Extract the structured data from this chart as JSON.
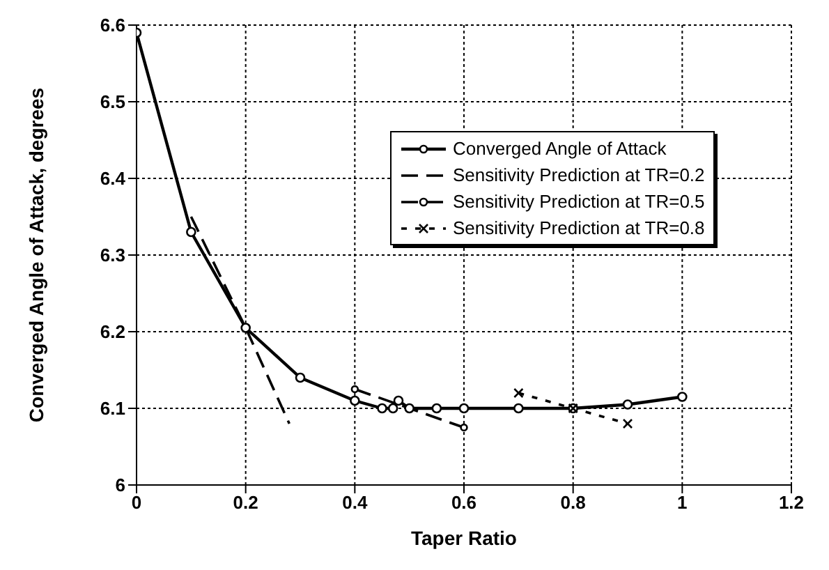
{
  "chart_data": {
    "type": "line",
    "xlabel": "Taper Ratio",
    "ylabel": "Converged Angle of Attack, degrees",
    "xlim": [
      0,
      1.2
    ],
    "xticks": [
      0,
      0.2,
      0.4,
      0.6,
      0.8,
      1,
      1.2
    ],
    "ylim": [
      6,
      6.6
    ],
    "yticks": [
      6,
      6.1,
      6.2,
      6.3,
      6.4,
      6.5,
      6.6
    ],
    "grid": true,
    "legend": "right",
    "series": [
      {
        "name": "Converged Angle of Attack",
        "color": "#000000",
        "marker": "circle",
        "line_style": "solid",
        "x": [
          0,
          0.1,
          0.2,
          0.3,
          0.4,
          0.45,
          0.47,
          0.48,
          0.5,
          0.55,
          0.6,
          0.7,
          0.8,
          0.9,
          1
        ],
        "values": [
          6.59,
          6.33,
          6.205,
          6.14,
          6.11,
          6.1,
          6.1,
          6.11,
          6.1,
          6.1,
          6.1,
          6.1,
          6.1,
          6.105,
          6.115
        ]
      },
      {
        "name": "Sensitivity Prediction at TR=0.2",
        "color": "#000000",
        "marker": "none",
        "line_style": "dashed",
        "x": [
          0.1,
          0.2,
          0.28
        ],
        "values": [
          6.35,
          6.205,
          6.08
        ]
      },
      {
        "name": "Sensitivity Prediction at TR=0.5",
        "color": "#000000",
        "marker": "circle",
        "line_style": "dashed",
        "x": [
          0.4,
          0.6
        ],
        "values": [
          6.125,
          6.075
        ]
      },
      {
        "name": "Sensitivity Prediction at TR=0.8",
        "color": "#000000",
        "marker": "cross",
        "line_style": "dotted",
        "x": [
          0.7,
          0.8,
          0.9
        ],
        "values": [
          6.12,
          6.1,
          6.08
        ]
      }
    ]
  }
}
